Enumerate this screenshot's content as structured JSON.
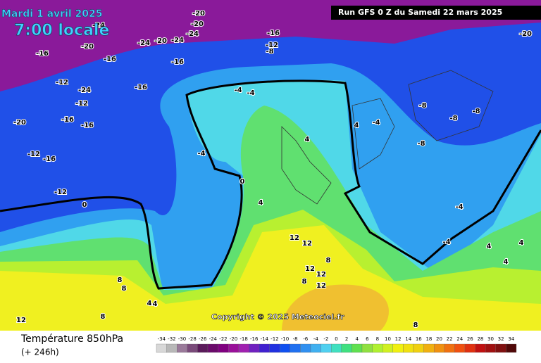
{
  "header": {
    "date": "Mardi 1 avril 2025",
    "time": "7:00 locale",
    "run": "Run GFS 0 Z du Samedi 22 mars 2025",
    "copyright": "Copyright © 2025 Meteociel.fr"
  },
  "footer": {
    "title": "Température 850hPa",
    "lead": "(+ 246h)"
  },
  "legend": {
    "labels": [
      -34,
      -32,
      -30,
      -28,
      -26,
      -24,
      -22,
      -20,
      -18,
      -16,
      -14,
      -12,
      -10,
      -8,
      -6,
      -4,
      -2,
      0,
      2,
      4,
      6,
      8,
      10,
      12,
      14,
      16,
      18,
      20,
      22,
      24,
      26,
      28,
      30,
      32,
      34
    ],
    "colors": [
      "#d8d8d8",
      "#b8b8b8",
      "#9a7a9a",
      "#7a4a7a",
      "#5a1a5a",
      "#6a0a6a",
      "#800080",
      "#9a109a",
      "#a020b0",
      "#7020c0",
      "#4020d0",
      "#2030e0",
      "#1050f0",
      "#2070f0",
      "#3090f0",
      "#40b0f0",
      "#50d0f0",
      "#40e0c0",
      "#40e080",
      "#60e050",
      "#90e040",
      "#b0f030",
      "#d0f020",
      "#f0f010",
      "#f0e010",
      "#f0d010",
      "#f0b010",
      "#f09010",
      "#f07010",
      "#f05010",
      "#e03010",
      "#c01010",
      "#a01010",
      "#801010",
      "#500808"
    ]
  },
  "map_labels": [
    "-20",
    "-20",
    "-24",
    "-24",
    "-20",
    "-16",
    "-12",
    "-8",
    "-20",
    "-24",
    "-20",
    "-24",
    "-16",
    "-16",
    "-16",
    "-12",
    "-24",
    "-16",
    "-12",
    "-16",
    "-20",
    "-16",
    "-12",
    "-16",
    "-12",
    "-4",
    "-4",
    "-4",
    "-8",
    "-8",
    "-8",
    "-8",
    "-4",
    "0",
    "4",
    "4",
    "4",
    "0",
    "-4",
    "-4",
    "4",
    "4",
    "4",
    "12",
    "12",
    "12",
    "12",
    "8",
    "8",
    "8",
    "8",
    "4",
    "12",
    "8",
    "12",
    "8",
    "4"
  ]
}
